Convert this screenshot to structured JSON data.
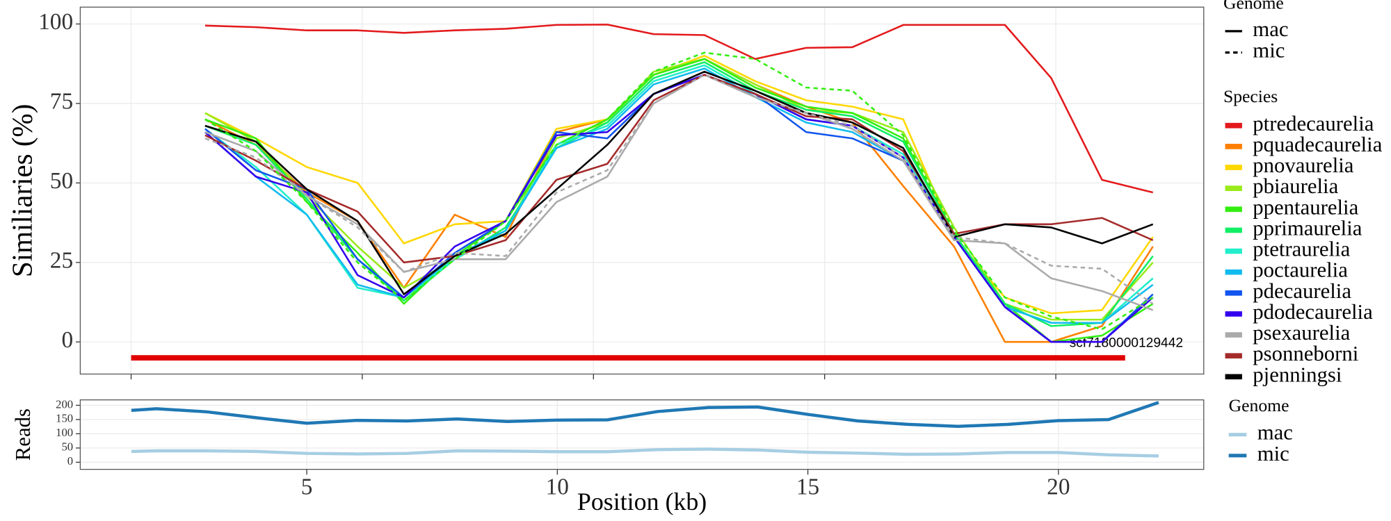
{
  "chart_data": [
    {
      "type": "line",
      "y_label": "Similiaries (%)",
      "grid": true,
      "xlim": [
        -1.1,
        23.2
      ],
      "xticks": [
        0,
        5,
        10,
        15,
        20
      ],
      "ylim": [
        -10.1,
        105.3
      ],
      "yticks": [
        0,
        25,
        50,
        75,
        100
      ],
      "x": [
        1.6,
        2.7,
        3.8,
        4.9,
        5.9,
        7.0,
        8.1,
        9.2,
        10.3,
        11.3,
        12.4,
        13.5,
        14.6,
        15.6,
        16.7,
        17.8,
        18.9,
        19.9,
        21.0,
        22.1
      ],
      "genome_legend": {
        "title": "Genome",
        "items": [
          {
            "label": "mac",
            "dash": "solid"
          },
          {
            "label": "mic",
            "dash": "dashed"
          }
        ]
      },
      "species_legend_title": "Species",
      "contig": {
        "label": "scf7180000129442",
        "start": 0,
        "end": 21.5,
        "y": -5,
        "color": "#e00000"
      },
      "series": [
        {
          "name": "ptredecaurelia",
          "genome": "mac",
          "color": "#e31a1c",
          "values": [
            99.5,
            99,
            98,
            98,
            97.2,
            98,
            98.5,
            99.7,
            99.8,
            96.8,
            96.5,
            89,
            92.5,
            92.7,
            99.7,
            99.7,
            99.7,
            83,
            51,
            47
          ]
        },
        {
          "name": "pquadecaurelia",
          "genome": "mac",
          "color": "#ff7f00",
          "values": [
            70,
            62,
            47,
            38,
            17,
            40,
            33,
            66,
            70,
            84,
            89,
            81,
            74,
            69,
            49,
            30,
            0,
            0,
            5,
            30
          ]
        },
        {
          "name": "pnovaurelia",
          "genome": "mac",
          "color": "#ffd700",
          "values": [
            72,
            64,
            55,
            50,
            31,
            37,
            38,
            67,
            70,
            84,
            90,
            82,
            76,
            74,
            70,
            33,
            14,
            9,
            10,
            33
          ]
        },
        {
          "name": "pbiaurelia",
          "genome": "mac",
          "color": "#9aea1c",
          "values": [
            72,
            63,
            46,
            30,
            17,
            26,
            35,
            64,
            69,
            85,
            89,
            81,
            73,
            72,
            66,
            36,
            12,
            7,
            7,
            25
          ]
        },
        {
          "name": "ppentaurelia",
          "genome": "mac",
          "color": "#33ee11",
          "values": [
            70,
            64,
            44,
            28,
            12,
            27,
            38,
            62,
            70,
            84,
            89,
            80,
            74,
            72,
            64,
            34,
            12,
            0,
            2,
            12
          ]
        },
        {
          "name": "pprimaurelia",
          "genome": "mac",
          "color": "#11ee66",
          "values": [
            68,
            62,
            45,
            26,
            13,
            26,
            36,
            61,
            69,
            83,
            88,
            79,
            73,
            71,
            63,
            34,
            12,
            5,
            6,
            27
          ]
        },
        {
          "name": "ptetraurelia",
          "genome": "mac",
          "color": "#22eecc",
          "values": [
            67,
            55,
            40,
            17,
            14,
            26,
            35,
            62,
            68,
            82,
            87,
            78,
            70,
            68,
            59,
            33,
            11,
            6,
            6,
            20
          ]
        },
        {
          "name": "poctaurelia",
          "genome": "mac",
          "color": "#11bbee",
          "values": [
            66,
            52,
            40,
            18,
            14,
            27,
            35,
            61,
            67,
            81,
            86,
            77,
            69,
            66,
            57,
            33,
            11,
            6,
            6,
            18
          ]
        },
        {
          "name": "pdecaurelia",
          "genome": "mac",
          "color": "#1155ee",
          "values": [
            67,
            54,
            48,
            26,
            14,
            28,
            38,
            66,
            64,
            78,
            84,
            78,
            66,
            64,
            57,
            33,
            11,
            0,
            0,
            15
          ]
        },
        {
          "name": "pdodecaurelia",
          "genome": "mac",
          "color": "#3300ee",
          "values": [
            66,
            52,
            47,
            21,
            14,
            30,
            38,
            65,
            66,
            78,
            84,
            78,
            70,
            68,
            58,
            33,
            11,
            0,
            0,
            14
          ]
        },
        {
          "name": "psexaurelia",
          "genome": "mac",
          "color": "#aaaaaa",
          "values": [
            66,
            60,
            46,
            37,
            22,
            26,
            26,
            44,
            52,
            75,
            84,
            77,
            72,
            67,
            57,
            32,
            31,
            20,
            16,
            10
          ]
        },
        {
          "name": "psonneborni",
          "genome": "mac",
          "color": "#a52a2a",
          "values": [
            65,
            57,
            48,
            41,
            25,
            27,
            32,
            51,
            56,
            76,
            84,
            78,
            71,
            70,
            60,
            34,
            37,
            37,
            39,
            32
          ]
        },
        {
          "name": "pjenningsi",
          "genome": "mac",
          "color": "#000000",
          "values": [
            68,
            63,
            48,
            38,
            15,
            27,
            34,
            48,
            62,
            78,
            85,
            79,
            72,
            69,
            61,
            33,
            37,
            36,
            31,
            37
          ]
        },
        {
          "name": "psexaurelia",
          "genome": "mic",
          "color": "#aaaaaa",
          "values": [
            64,
            58,
            46,
            36,
            22,
            28,
            27,
            47,
            54,
            75,
            84,
            77,
            72,
            68,
            58,
            33,
            31,
            24,
            23,
            12
          ]
        },
        {
          "name": "ppentaurelia",
          "genome": "mic",
          "color": "#33ee11",
          "values": [
            70,
            60,
            44,
            25,
            13,
            26,
            38,
            62,
            70,
            85,
            91,
            89,
            80,
            79,
            65,
            35,
            14,
            8,
            4,
            14
          ]
        }
      ]
    },
    {
      "type": "line",
      "x_label": "Position (kb)",
      "y_label": "Reads",
      "legend_title": "Genome",
      "grid": true,
      "xlim": [
        0.48,
        22.9
      ],
      "xticks": [
        5,
        10,
        15,
        20
      ],
      "ylim": [
        -25,
        219
      ],
      "yticks": [
        0,
        50,
        100,
        150,
        200
      ],
      "x": [
        1.5,
        2,
        3,
        4,
        5,
        6,
        7,
        8,
        9,
        10,
        11,
        12,
        13,
        14,
        15,
        16,
        17,
        18,
        19,
        20,
        21,
        22
      ],
      "series": [
        {
          "name": "mac",
          "color": "#a6cee3",
          "values": [
            38,
            40,
            40,
            38,
            31,
            29,
            31,
            40,
            39,
            37,
            37,
            44,
            46,
            43,
            35,
            32,
            28,
            29,
            34,
            34,
            26,
            22
          ]
        },
        {
          "name": "mic",
          "color": "#1f78b4",
          "values": [
            182,
            188,
            177,
            156,
            137,
            147,
            145,
            152,
            143,
            148,
            149,
            178,
            192,
            194,
            168,
            145,
            133,
            126,
            133,
            146,
            150,
            210
          ]
        }
      ]
    }
  ]
}
